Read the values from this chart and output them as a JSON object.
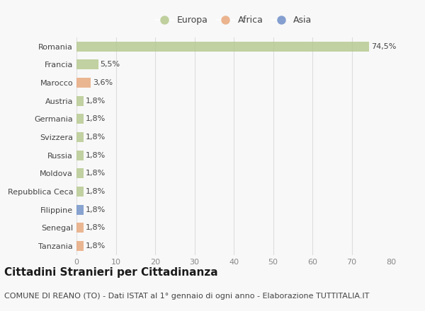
{
  "countries": [
    "Romania",
    "Francia",
    "Marocco",
    "Austria",
    "Germania",
    "Svizzera",
    "Russia",
    "Moldova",
    "Repubblica Ceca",
    "Filippine",
    "Senegal",
    "Tanzania"
  ],
  "values": [
    74.5,
    5.5,
    3.6,
    1.8,
    1.8,
    1.8,
    1.8,
    1.8,
    1.8,
    1.8,
    1.8,
    1.8
  ],
  "labels": [
    "74,5%",
    "5,5%",
    "3,6%",
    "1,8%",
    "1,8%",
    "1,8%",
    "1,8%",
    "1,8%",
    "1,8%",
    "1,8%",
    "1,8%",
    "1,8%"
  ],
  "continents": [
    "Europa",
    "Europa",
    "Africa",
    "Europa",
    "Europa",
    "Europa",
    "Europa",
    "Europa",
    "Europa",
    "Asia",
    "Africa",
    "Africa"
  ],
  "colors": {
    "Europa": "#b5c98e",
    "Africa": "#e8a87c",
    "Asia": "#7090c8"
  },
  "xlim": [
    0,
    80
  ],
  "xticks": [
    0,
    10,
    20,
    30,
    40,
    50,
    60,
    70,
    80
  ],
  "title": "Cittadini Stranieri per Cittadinanza",
  "subtitle": "COMUNE DI REANO (TO) - Dati ISTAT al 1° gennaio di ogni anno - Elaborazione TUTTITALIA.IT",
  "background_color": "#f8f8f8",
  "grid_color": "#dddddd",
  "bar_height": 0.55,
  "title_fontsize": 11,
  "subtitle_fontsize": 8,
  "label_fontsize": 8,
  "tick_fontsize": 8,
  "legend_fontsize": 9
}
